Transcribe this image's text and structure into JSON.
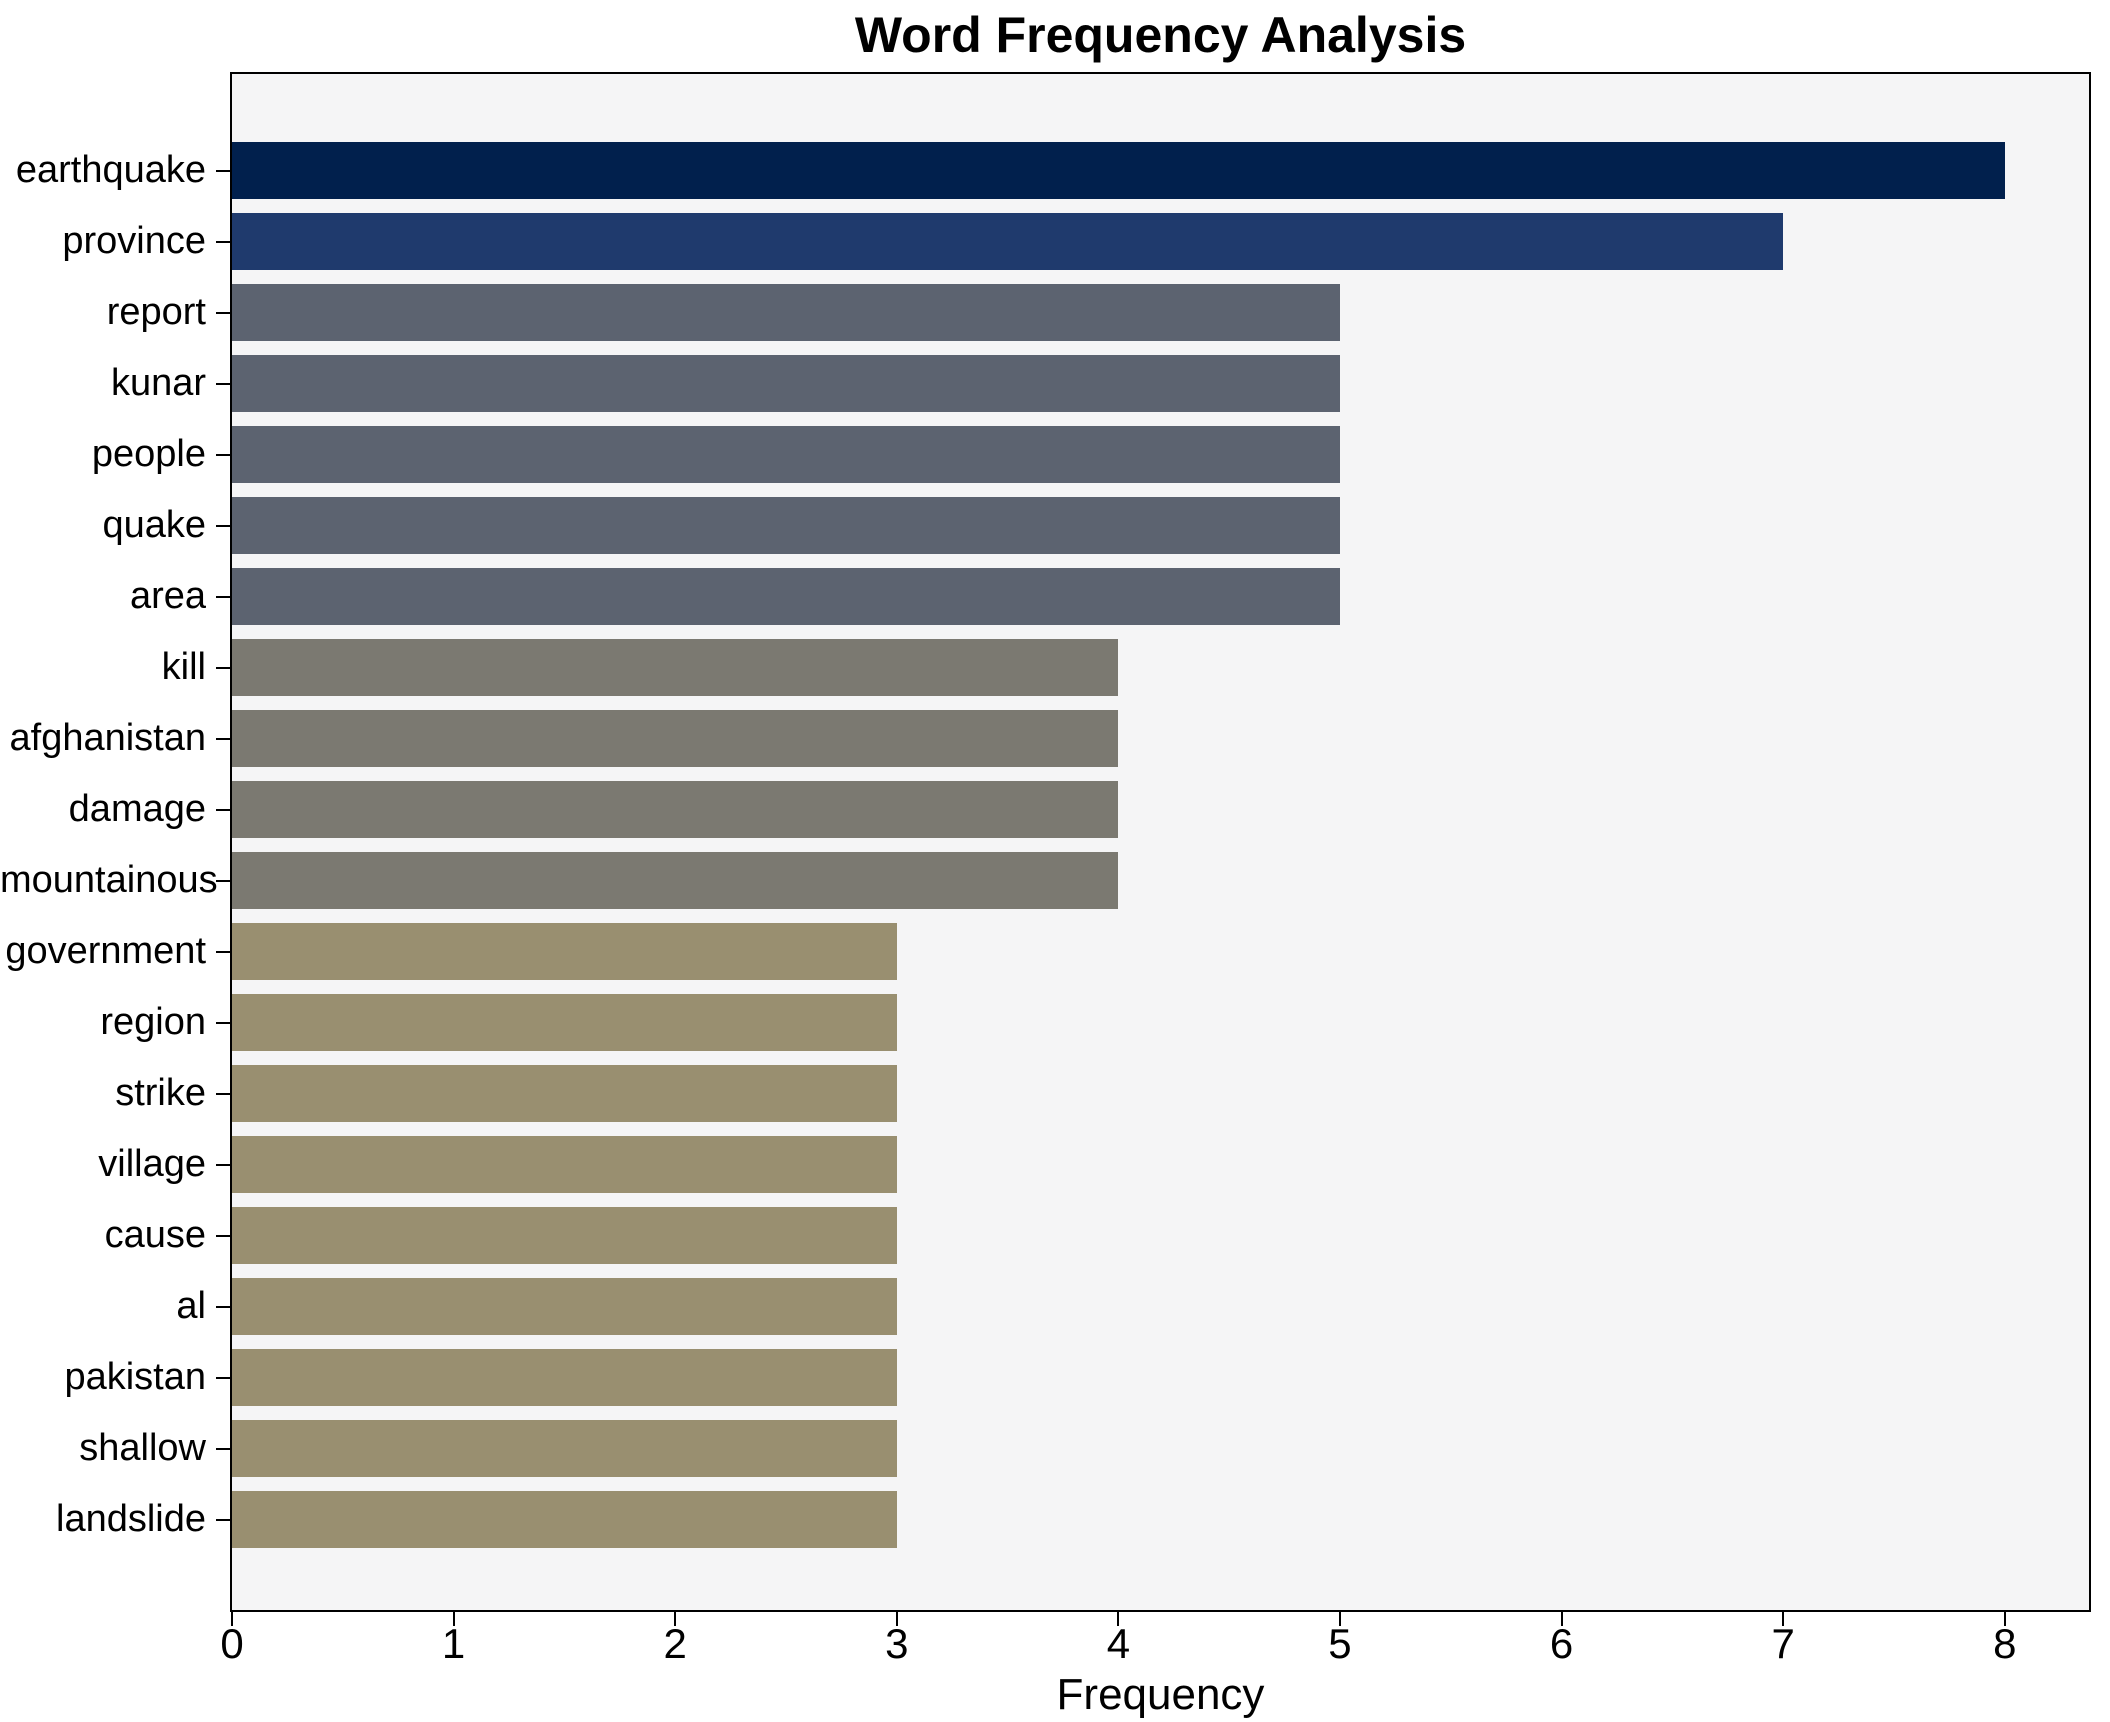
{
  "figure": {
    "title": "Word Frequency Analysis",
    "xlabel": "Frequency"
  },
  "chart_data": {
    "type": "bar",
    "orientation": "horizontal",
    "title": "Word Frequency Analysis",
    "xlabel": "Frequency",
    "ylabel": "",
    "categories": [
      "earthquake",
      "province",
      "report",
      "kunar",
      "people",
      "quake",
      "area",
      "kill",
      "afghanistan",
      "damage",
      "mountainous",
      "government",
      "region",
      "strike",
      "village",
      "cause",
      "al",
      "pakistan",
      "shallow",
      "landslide"
    ],
    "values": [
      8,
      7,
      5,
      5,
      5,
      5,
      5,
      4,
      4,
      4,
      4,
      3,
      3,
      3,
      3,
      3,
      3,
      3,
      3,
      3
    ],
    "x_ticks": [
      0,
      1,
      2,
      3,
      4,
      5,
      6,
      7,
      8
    ],
    "xlim": [
      0,
      8.38
    ],
    "grid": false,
    "legend_position": "none",
    "colors_by_value": {
      "8": "#01204d",
      "7": "#1f3a6d",
      "5": "#5c6370",
      "4": "#7b7971",
      "3": "#998f70"
    },
    "bar_colors": [
      "#01204d",
      "#1f3a6d",
      "#5c6370",
      "#5c6370",
      "#5c6370",
      "#5c6370",
      "#5c6370",
      "#7b7971",
      "#7b7971",
      "#7b7971",
      "#7b7971",
      "#998f70",
      "#998f70",
      "#998f70",
      "#998f70",
      "#998f70",
      "#998f70",
      "#998f70",
      "#998f70",
      "#998f70"
    ],
    "plot_background": "#f5f5f6",
    "figure_background": "#ffffff",
    "spine_color": "#000000",
    "text_color": "#000000"
  }
}
